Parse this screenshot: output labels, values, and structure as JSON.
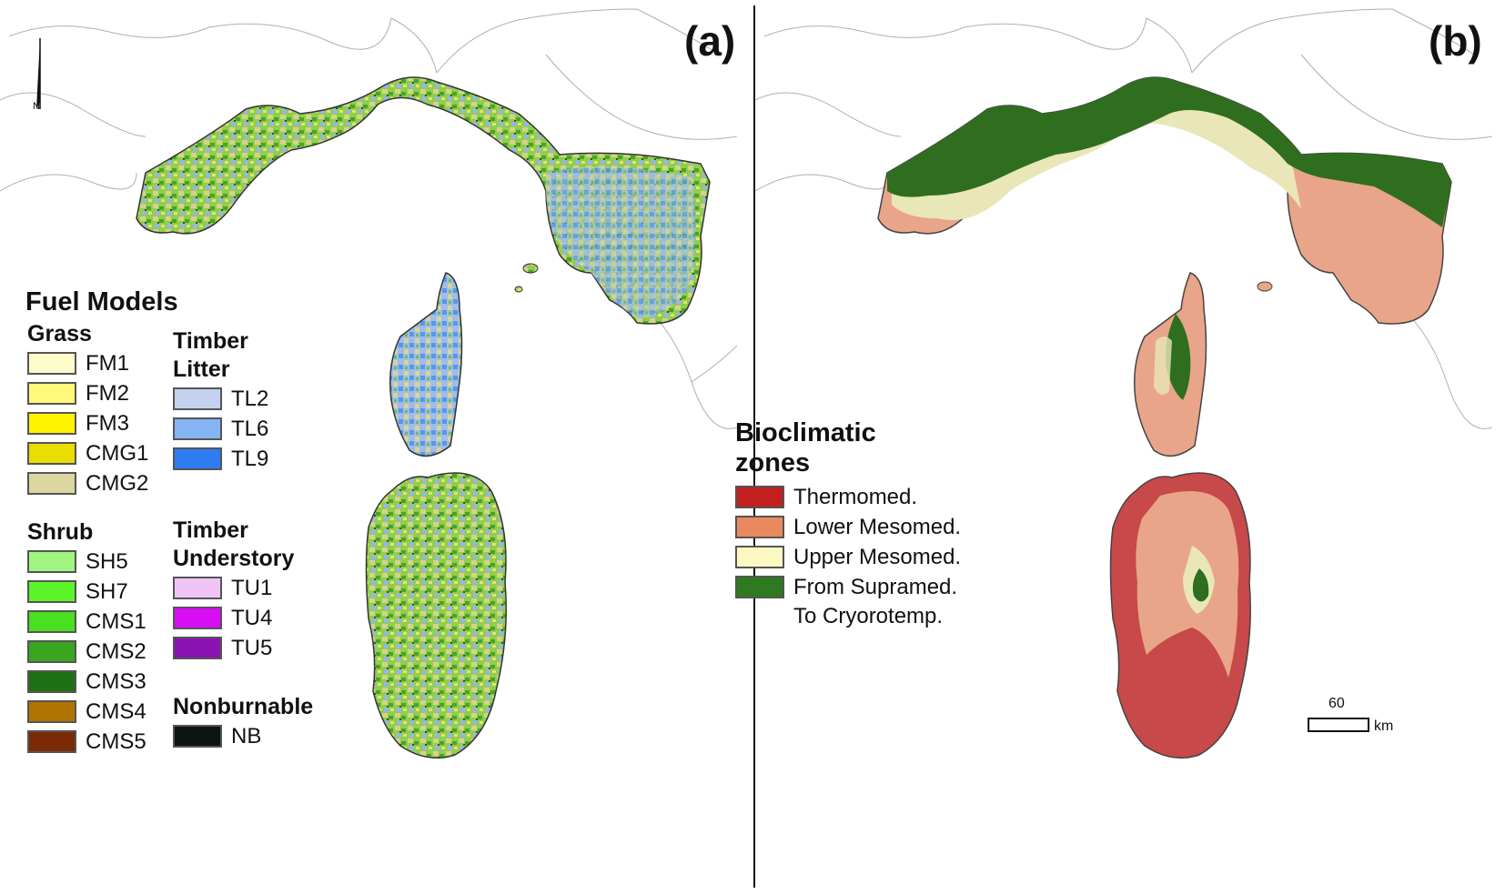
{
  "panel_a": {
    "label": "(a)",
    "legend": {
      "title": "Fuel Models",
      "groups": {
        "grass": {
          "title": "Grass",
          "items": [
            {
              "label": "FM1",
              "color": "#fffccc"
            },
            {
              "label": "FM2",
              "color": "#fff87a"
            },
            {
              "label": "FM3",
              "color": "#fff200"
            },
            {
              "label": "CMG1",
              "color": "#e8dc00"
            },
            {
              "label": "CMG2",
              "color": "#dcd6a0"
            }
          ]
        },
        "litter": {
          "title_line1": "Timber",
          "title_line2": "Litter",
          "items": [
            {
              "label": "TL2",
              "color": "#c4d2ef"
            },
            {
              "label": "TL6",
              "color": "#84b4f2"
            },
            {
              "label": "TL9",
              "color": "#2f7cf2"
            }
          ]
        },
        "shrub": {
          "title": "Shrub",
          "items": [
            {
              "label": "SH5",
              "color": "#a0f580"
            },
            {
              "label": "SH7",
              "color": "#5cf52a"
            },
            {
              "label": "CMS1",
              "color": "#48e020"
            },
            {
              "label": "CMS2",
              "color": "#3aa51f"
            },
            {
              "label": "CMS3",
              "color": "#1f7014"
            },
            {
              "label": "CMS4",
              "color": "#b07400"
            },
            {
              "label": "CMS5",
              "color": "#7a2a05"
            }
          ]
        },
        "understory": {
          "title_line1": "Timber",
          "title_line2": "Understory",
          "items": [
            {
              "label": "TU1",
              "color": "#efc4f4"
            },
            {
              "label": "TU4",
              "color": "#d70ef4"
            },
            {
              "label": "TU5",
              "color": "#8a12b2"
            }
          ]
        },
        "nonburnable": {
          "title": "Nonburnable",
          "items": [
            {
              "label": "NB",
              "color": "#0c1414"
            }
          ]
        }
      }
    }
  },
  "panel_b": {
    "label": "(b)",
    "legend": {
      "title_line1": "Bioclimatic",
      "title_line2": "zones",
      "items": [
        {
          "label": "Thermomed.",
          "color": "#c31f1f"
        },
        {
          "label": "Lower Mesomed.",
          "color": "#e88a5e"
        },
        {
          "label": "Upper Mesomed.",
          "color": "#fdf8c2"
        },
        {
          "label": "From Supramed.",
          "color": "#2e7a1e"
        }
      ],
      "continuation": "To Cryorotemp."
    },
    "scale_bar": {
      "value": "60",
      "unit": "km"
    }
  },
  "north_arrow": {
    "letter": "N"
  }
}
